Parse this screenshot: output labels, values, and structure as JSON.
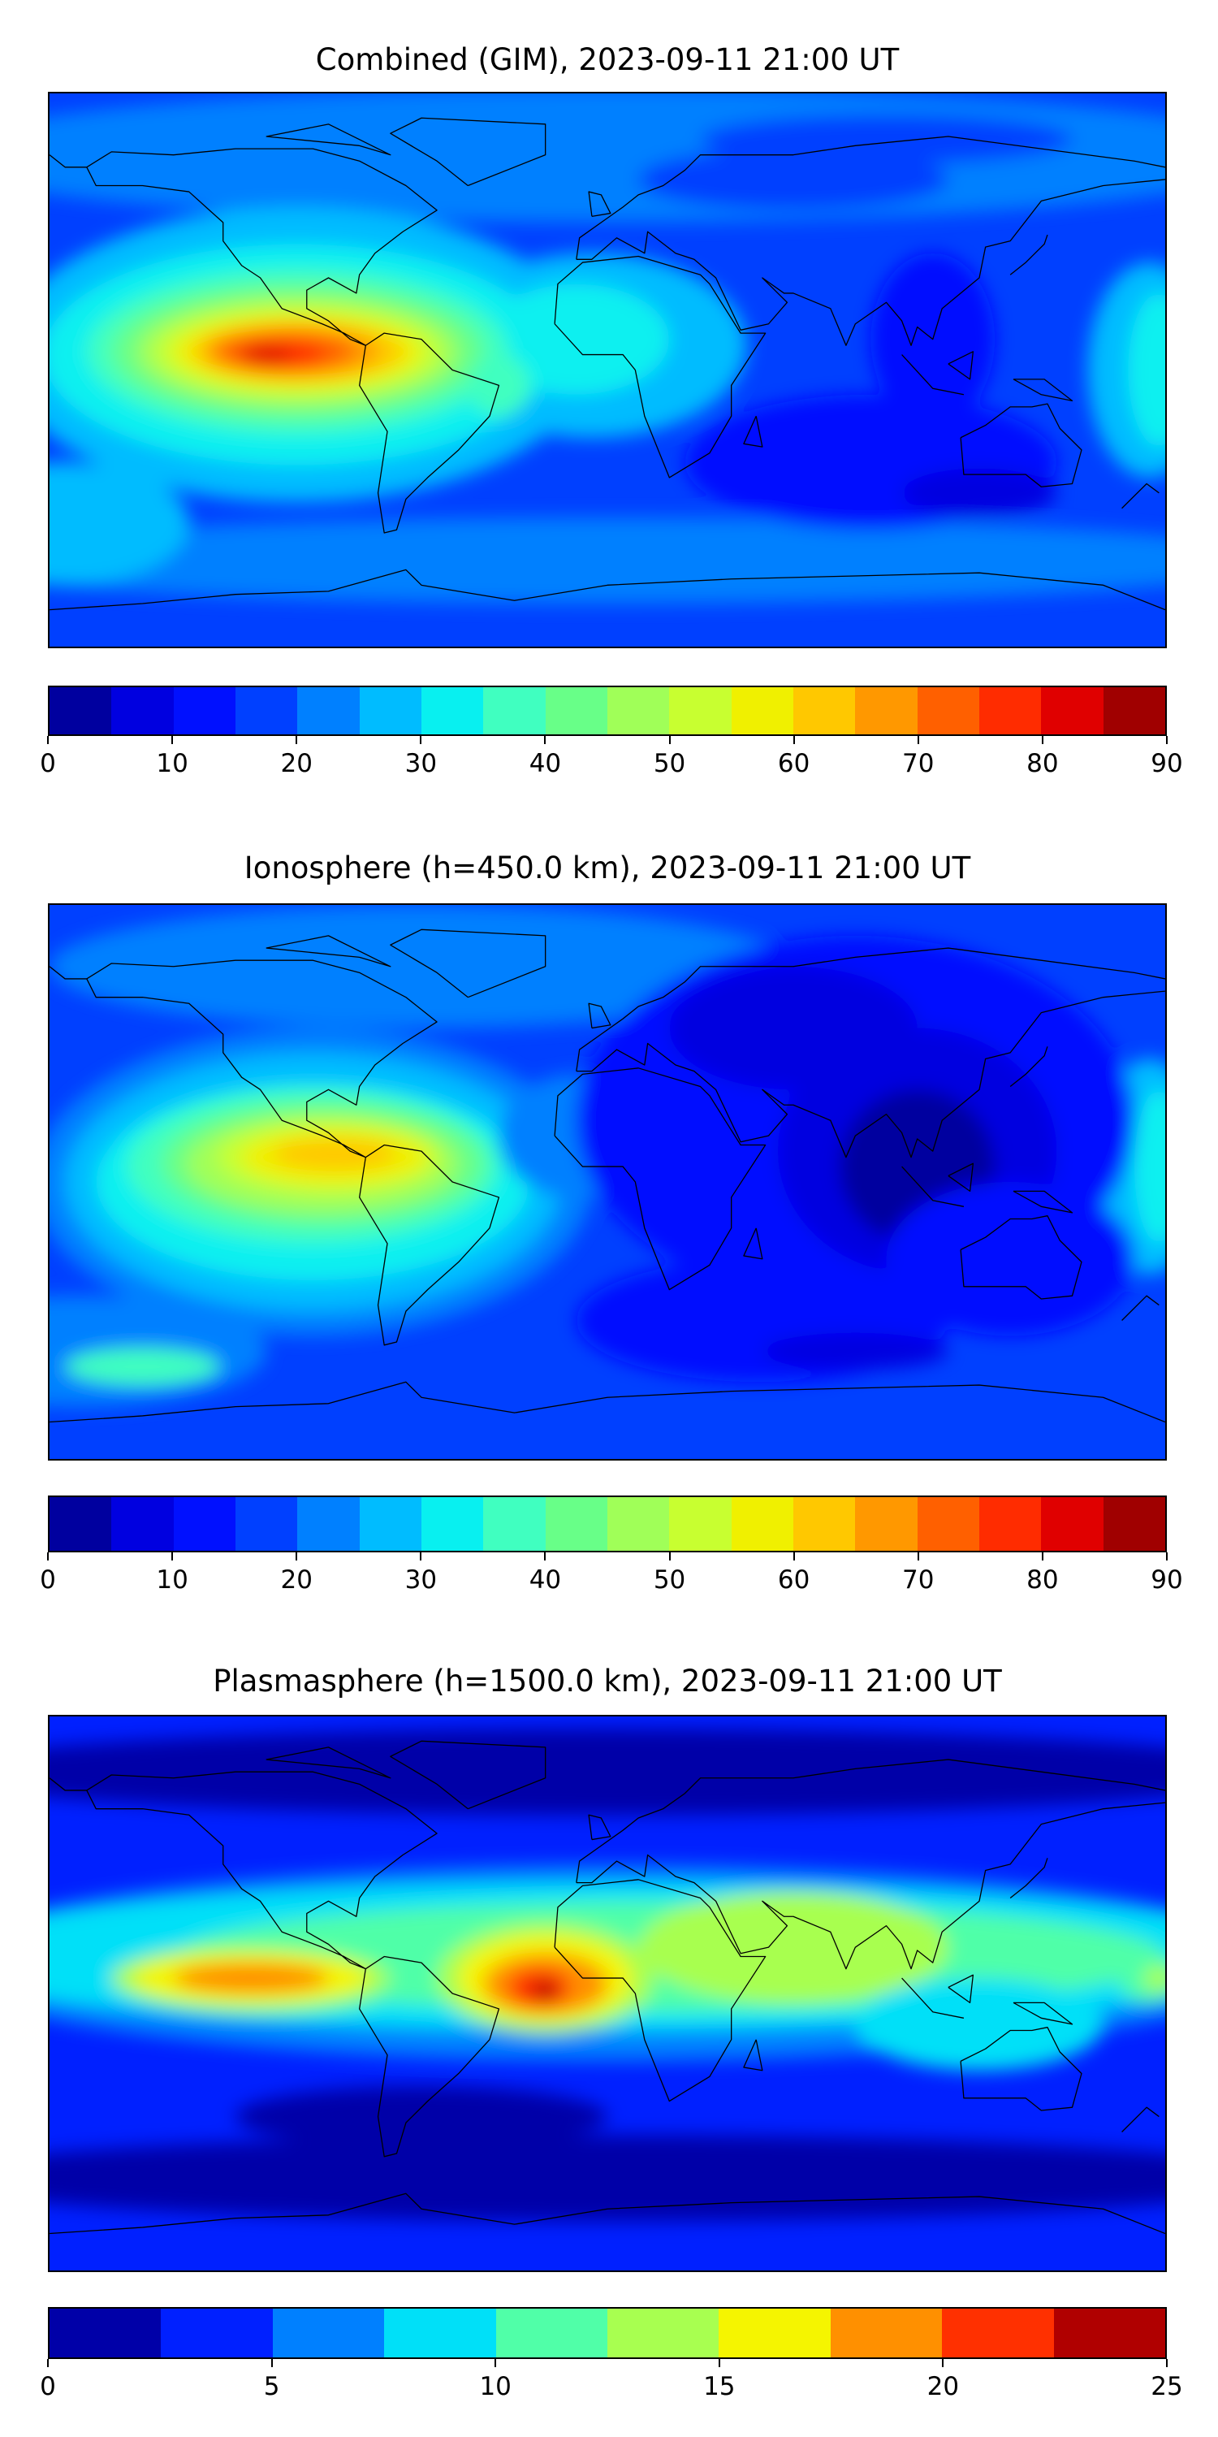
{
  "chart_data": [
    {
      "type": "heatmap",
      "title": "Combined (GIM), 2023-09-11 21:00 UT",
      "colorbar": {
        "min": 0,
        "max": 90,
        "step": 5,
        "ticks": [
          0,
          10,
          20,
          30,
          40,
          50,
          60,
          70,
          80,
          90
        ],
        "colors": [
          "#00009f",
          "#0000e0",
          "#0010ff",
          "#0040ff",
          "#0080ff",
          "#00bcff",
          "#08f0f0",
          "#40ffc0",
          "#68ff88",
          "#a0ff58",
          "#c8ff30",
          "#f0f000",
          "#ffc800",
          "#ff9800",
          "#ff6000",
          "#ff2c00",
          "#e00000",
          "#a00000"
        ]
      },
      "peak": {
        "lon": -105,
        "lat": 5,
        "value": 82
      },
      "grid": false
    },
    {
      "type": "heatmap",
      "title": "Ionosphere  (h=450.0 km), 2023-09-11 21:00 UT",
      "colorbar": {
        "min": 0,
        "max": 90,
        "step": 5,
        "ticks": [
          0,
          10,
          20,
          30,
          40,
          50,
          60,
          70,
          80,
          90
        ],
        "colors": [
          "#00009f",
          "#0000e0",
          "#0010ff",
          "#0040ff",
          "#0080ff",
          "#00bcff",
          "#08f0f0",
          "#40ffc0",
          "#68ff88",
          "#a0ff58",
          "#c8ff30",
          "#f0f000",
          "#ffc800",
          "#ff9800",
          "#ff6000",
          "#ff2c00",
          "#e00000",
          "#a00000"
        ]
      },
      "peak": {
        "lon": -90,
        "lat": 10,
        "value": 62
      },
      "grid": false
    },
    {
      "type": "heatmap",
      "title": "Plasmasphere (h=1500.0 km), 2023-09-11 21:00 UT",
      "colorbar": {
        "min": 0,
        "max": 25,
        "step": 2.5,
        "ticks": [
          0,
          5,
          10,
          15,
          20,
          25
        ],
        "colors": [
          "#0000a8",
          "#0020ff",
          "#0080ff",
          "#00e0f8",
          "#50ffa8",
          "#a8ff50",
          "#f5f500",
          "#ff9000",
          "#ff3000",
          "#b00000"
        ]
      },
      "peak": {
        "lon": -20,
        "lat": 2,
        "value": 21
      },
      "grid": false
    }
  ]
}
